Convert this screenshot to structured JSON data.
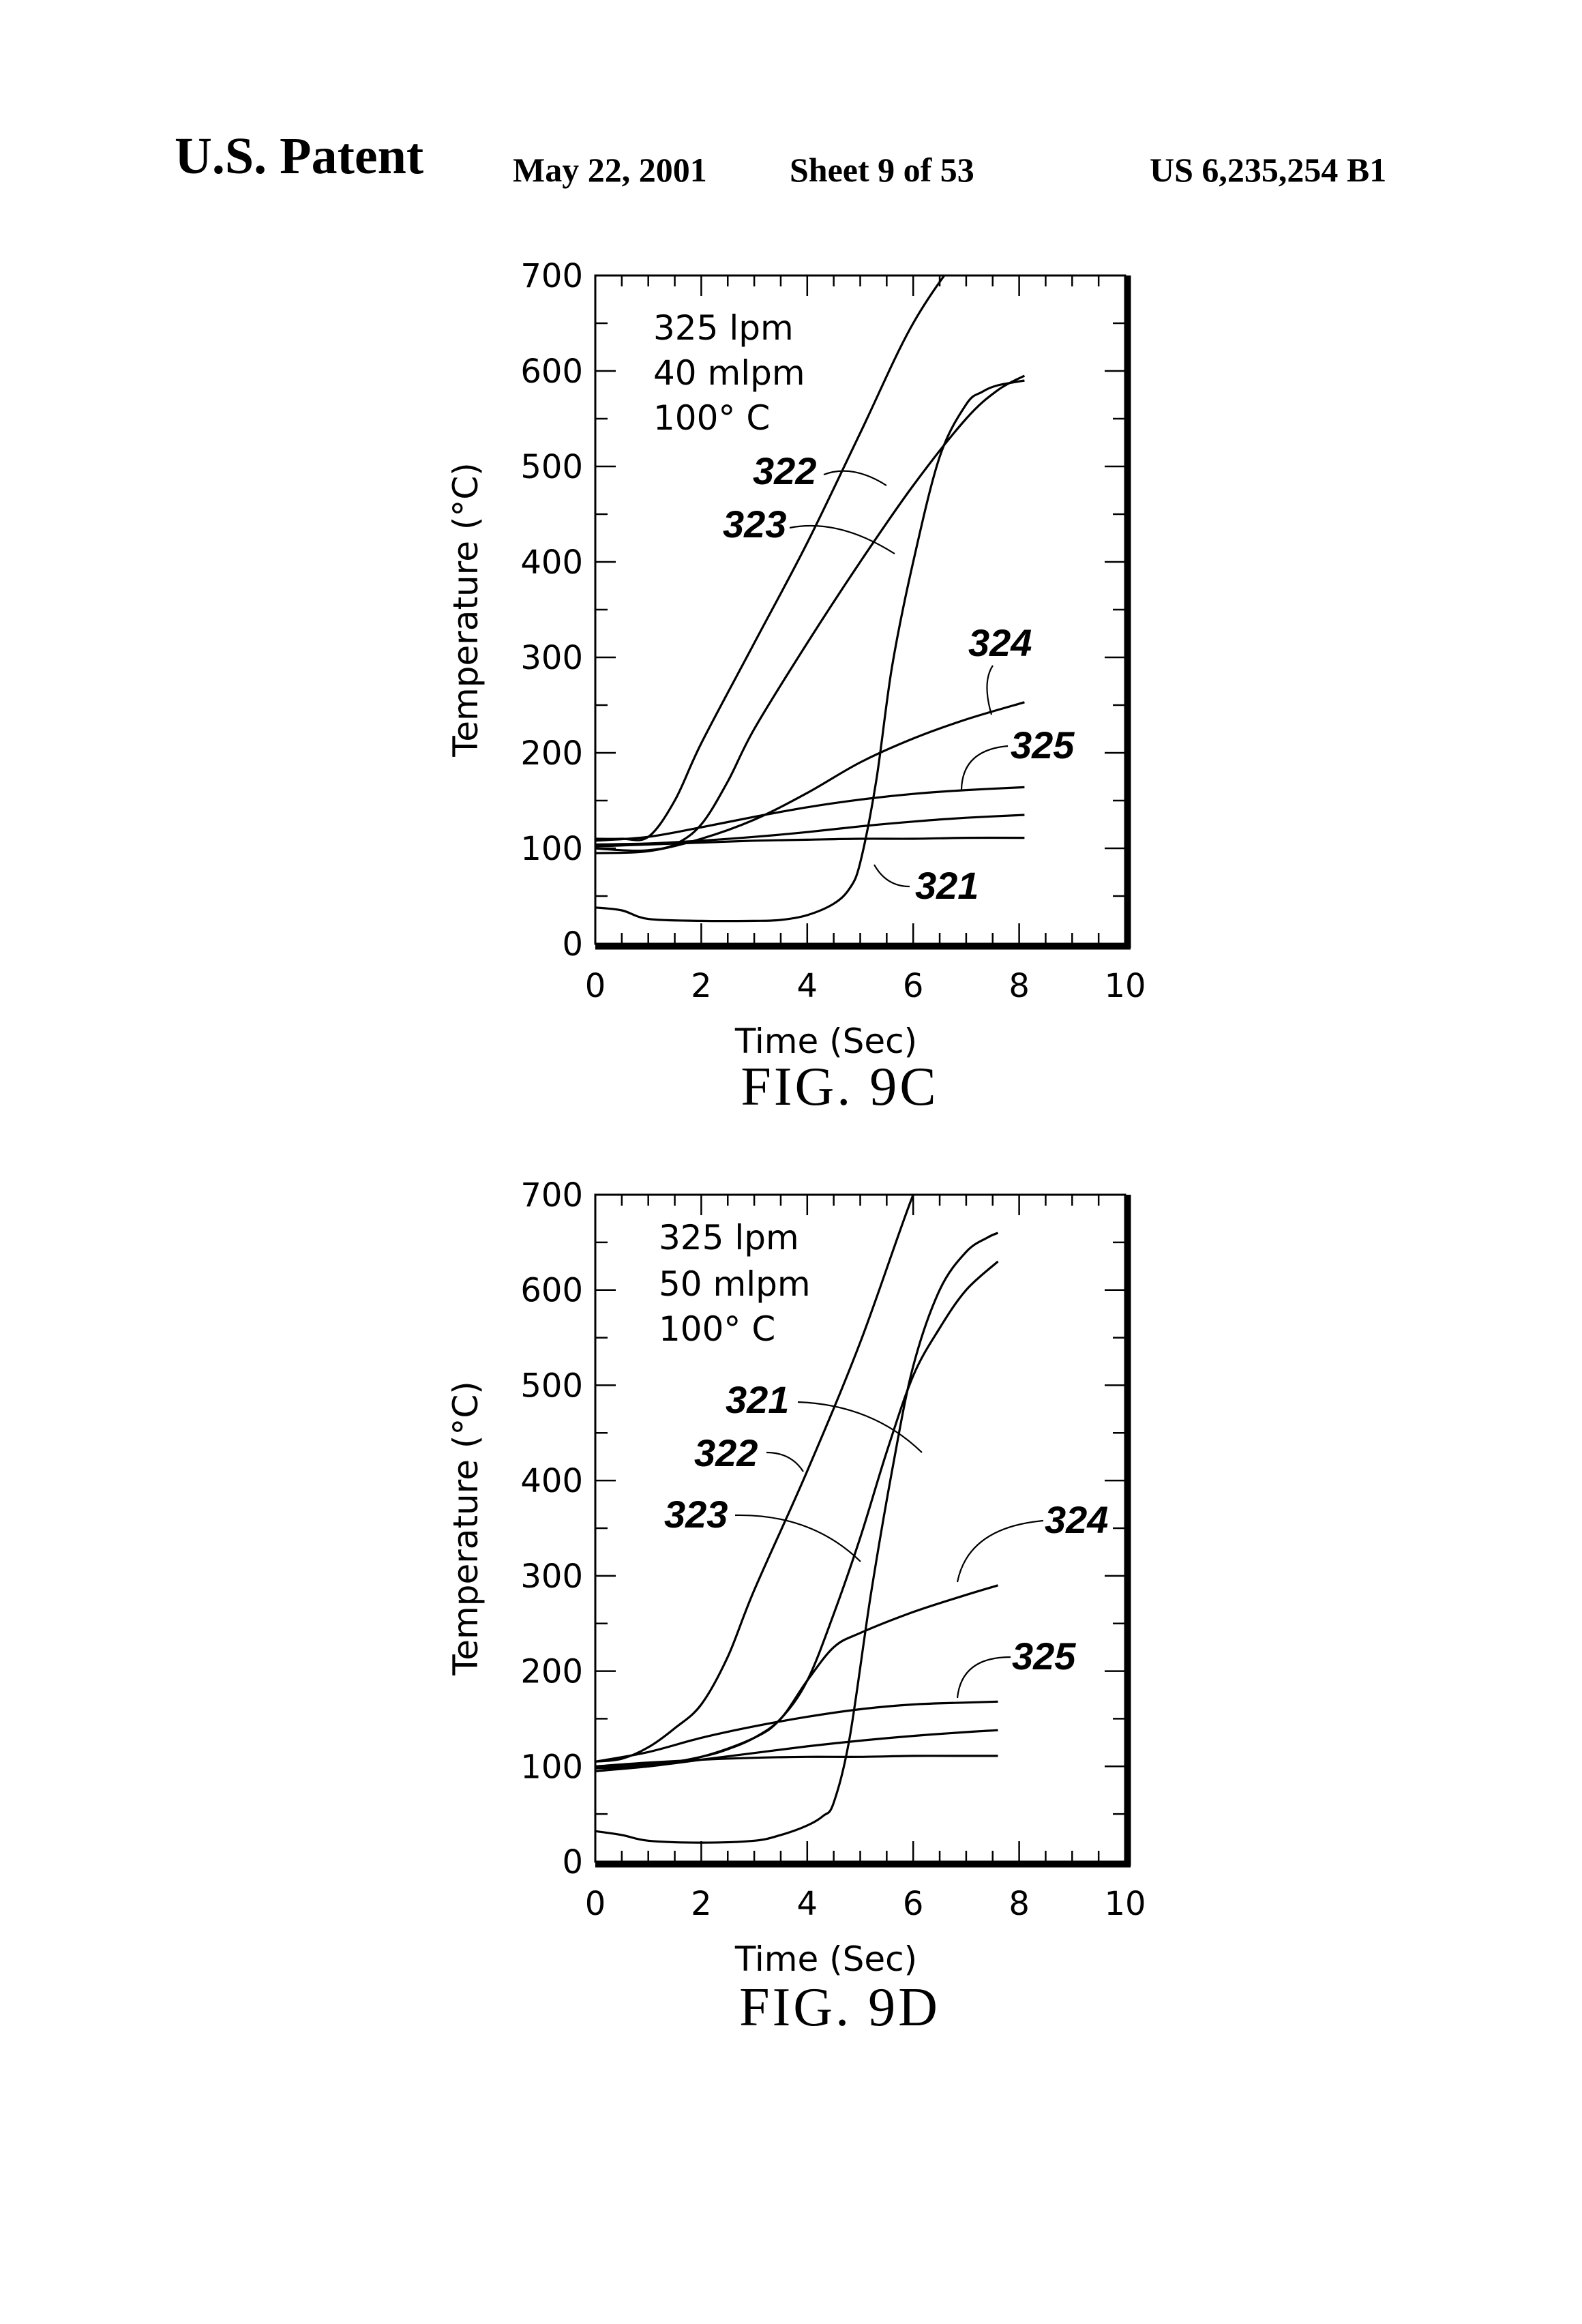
{
  "header": {
    "title": "U.S. Patent",
    "date": "May 22, 2001",
    "sheet": "Sheet 9 of 53",
    "patent_number": "US 6,235,254 B1"
  },
  "chart_data": [
    {
      "type": "line",
      "figure_label": "FIG. 9C",
      "xlabel": "Time (Sec)",
      "ylabel": "Temperature (°C)",
      "xlim": [
        0,
        10
      ],
      "ylim": [
        0,
        700
      ],
      "x_ticks": [
        "0",
        "2",
        "4",
        "6",
        "8",
        "10"
      ],
      "y_ticks": [
        "0",
        "100",
        "200",
        "300",
        "400",
        "500",
        "600",
        "700"
      ],
      "conditions": [
        "325 lpm",
        "40 mlpm",
        "100° C"
      ],
      "series": [
        {
          "name": "321",
          "x": [
            0,
            0.5,
            1,
            2,
            3,
            3.5,
            4,
            4.5,
            4.8,
            5.0,
            5.3,
            5.6,
            6,
            6.5,
            7,
            7.3,
            7.6,
            8.1
          ],
          "y": [
            38,
            35,
            26,
            24,
            24,
            25,
            30,
            42,
            58,
            85,
            170,
            290,
            400,
            510,
            565,
            578,
            585,
            590
          ]
        },
        {
          "name": "322",
          "x": [
            0,
            0.5,
            1,
            1.5,
            2,
            3,
            4,
            5,
            6,
            7,
            7.3
          ],
          "y": [
            110,
            110,
            112,
            150,
            210,
            315,
            420,
            535,
            650,
            730,
            740
          ]
        },
        {
          "name": "323",
          "x": [
            0,
            0.5,
            1,
            1.5,
            2,
            2.5,
            3,
            4,
            5,
            6,
            7,
            7.6,
            8.1
          ],
          "y": [
            100,
            98,
            98,
            104,
            125,
            170,
            225,
            315,
            400,
            480,
            550,
            580,
            595
          ]
        },
        {
          "name": "324",
          "x": [
            0,
            1,
            2,
            3,
            4,
            5,
            6,
            7,
            8.1
          ],
          "y": [
            95,
            97,
            110,
            130,
            158,
            190,
            215,
            235,
            253
          ]
        },
        {
          "name": "325",
          "x": [
            0,
            1,
            2,
            3,
            4,
            5,
            6,
            7,
            8.1
          ],
          "y": [
            108,
            112,
            122,
            133,
            143,
            151,
            157,
            161,
            164
          ]
        },
        {
          "name": "",
          "x": [
            0,
            1,
            2,
            3,
            4,
            5,
            6,
            7,
            8.1
          ],
          "y": [
            104,
            105,
            108,
            112,
            117,
            123,
            128,
            132,
            135
          ]
        },
        {
          "name": "",
          "x": [
            0,
            1,
            2,
            3,
            4,
            5,
            6,
            7,
            8.1
          ],
          "y": [
            102,
            104,
            106,
            108,
            109,
            110,
            110,
            111,
            111
          ]
        }
      ],
      "labels": [
        "322",
        "323",
        "324",
        "325",
        "321"
      ]
    },
    {
      "type": "line",
      "figure_label": "FIG. 9D",
      "xlabel": "Time (Sec)",
      "ylabel": "Temperature (°C)",
      "xlim": [
        0,
        10
      ],
      "ylim": [
        0,
        700
      ],
      "x_ticks": [
        "0",
        "2",
        "4",
        "6",
        "8",
        "10"
      ],
      "y_ticks": [
        "0",
        "100",
        "200",
        "300",
        "400",
        "500",
        "600",
        "700"
      ],
      "conditions": [
        "325 lpm",
        "50 mlpm",
        "100° C"
      ],
      "series": [
        {
          "name": "321",
          "x": [
            0,
            0.5,
            1,
            2,
            3,
            3.5,
            4,
            4.3,
            4.5,
            4.8,
            5.2,
            5.6,
            6,
            6.5,
            7,
            7.4,
            7.6
          ],
          "y": [
            32,
            28,
            22,
            20,
            22,
            28,
            38,
            48,
            62,
            130,
            280,
            410,
            520,
            600,
            640,
            655,
            660
          ]
        },
        {
          "name": "322",
          "x": [
            0,
            0.5,
            1,
            1.5,
            2,
            2.5,
            3,
            4,
            5,
            6,
            6.4
          ],
          "y": [
            105,
            108,
            120,
            140,
            165,
            215,
            285,
            410,
            545,
            700,
            740
          ]
        },
        {
          "name": "323",
          "x": [
            0,
            1,
            2,
            2.5,
            3,
            3.5,
            4,
            4.5,
            5,
            5.5,
            6,
            6.5,
            7,
            7.6
          ],
          "y": [
            98,
            100,
            110,
            118,
            130,
            150,
            190,
            260,
            340,
            430,
            510,
            560,
            600,
            630
          ]
        },
        {
          "name": "324",
          "x": [
            0,
            1,
            2,
            3,
            3.5,
            4,
            4.5,
            5,
            6,
            7,
            7.6
          ],
          "y": [
            100,
            102,
            110,
            130,
            150,
            190,
            225,
            240,
            262,
            280,
            290
          ]
        },
        {
          "name": "325",
          "x": [
            0,
            1,
            2,
            3,
            4,
            5,
            6,
            7,
            7.6
          ],
          "y": [
            105,
            115,
            130,
            142,
            152,
            160,
            165,
            167,
            168
          ]
        },
        {
          "name": "",
          "x": [
            0,
            1,
            2,
            3,
            4,
            5,
            6,
            7,
            7.6
          ],
          "y": [
            95,
            100,
            107,
            114,
            121,
            127,
            132,
            136,
            138
          ]
        },
        {
          "name": "",
          "x": [
            0,
            1,
            2,
            3,
            4,
            5,
            6,
            7,
            7.6
          ],
          "y": [
            100,
            104,
            107,
            109,
            110,
            110,
            111,
            111,
            111
          ]
        }
      ],
      "labels": [
        "321",
        "322",
        "323",
        "324",
        "325"
      ]
    }
  ]
}
